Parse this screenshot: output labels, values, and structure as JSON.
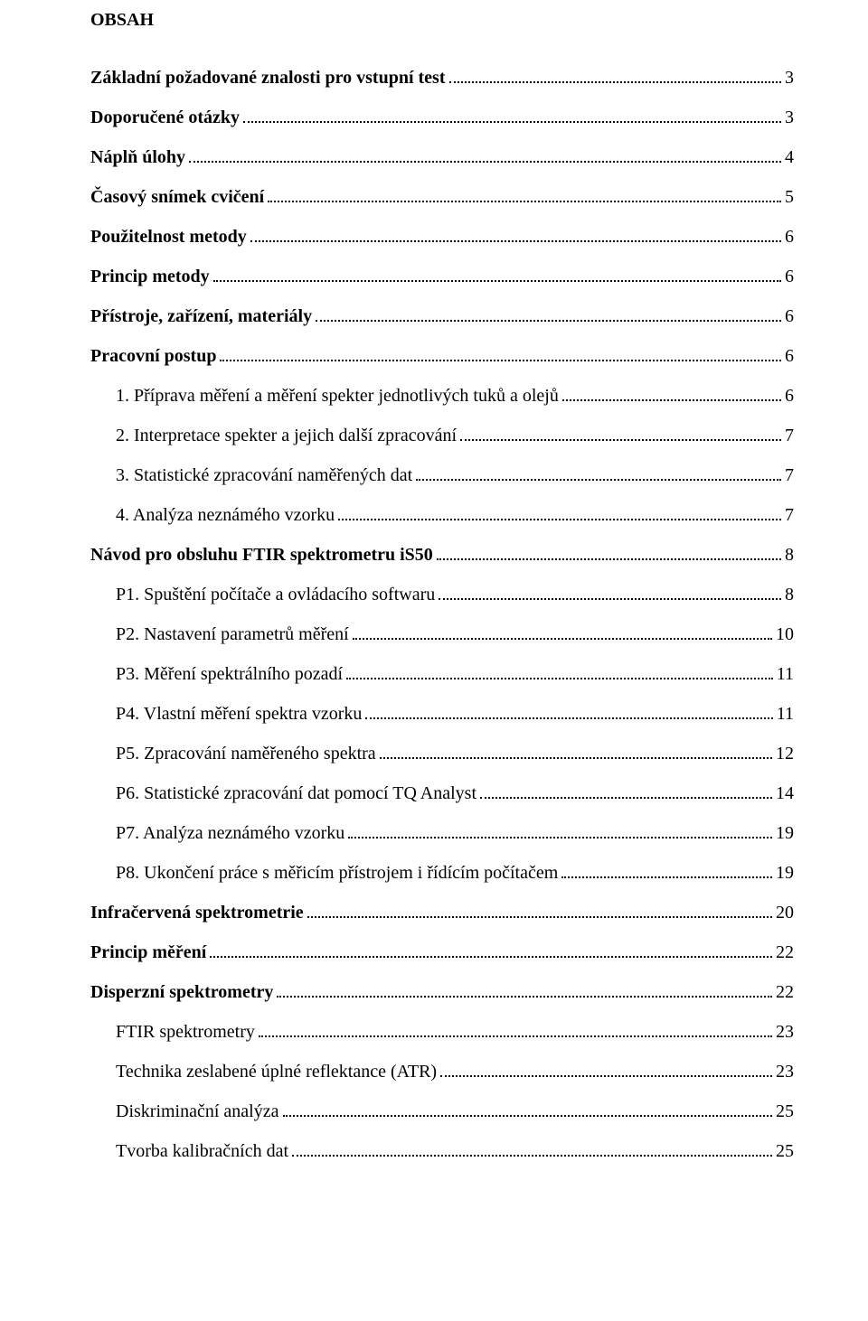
{
  "title": "OBSAH",
  "items": [
    {
      "label": "Základní požadované znalosti pro vstupní test",
      "page": "3",
      "bold": true,
      "indent": 0
    },
    {
      "label": "Doporučené otázky",
      "page": "3",
      "bold": true,
      "indent": 0
    },
    {
      "label": "Náplň úlohy",
      "page": "4",
      "bold": true,
      "indent": 0
    },
    {
      "label": "Časový snímek cvičení",
      "page": "5",
      "bold": true,
      "indent": 0
    },
    {
      "label": "Použitelnost metody",
      "page": "6",
      "bold": true,
      "indent": 0
    },
    {
      "label": "Princip metody",
      "page": "6",
      "bold": true,
      "indent": 0
    },
    {
      "label": "Přístroje, zařízení, materiály",
      "page": "6",
      "bold": true,
      "indent": 0
    },
    {
      "label": "Pracovní postup",
      "page": "6",
      "bold": true,
      "indent": 0
    },
    {
      "label": "1. Příprava měření a měření spekter jednotlivých tuků a olejů",
      "page": "6",
      "bold": false,
      "indent": 1
    },
    {
      "label": "2. Interpretace spekter a jejich další zpracování",
      "page": "7",
      "bold": false,
      "indent": 1
    },
    {
      "label": "3. Statistické zpracování naměřených dat",
      "page": "7",
      "bold": false,
      "indent": 1
    },
    {
      "label": "4. Analýza neznámého vzorku",
      "page": "7",
      "bold": false,
      "indent": 1
    },
    {
      "label": "Návod pro obsluhu FTIR spektrometru iS50",
      "page": "8",
      "bold": true,
      "indent": 0
    },
    {
      "label": "P1. Spuštění počítače a ovládacího softwaru",
      "page": "8",
      "bold": false,
      "indent": 1
    },
    {
      "label": "P2. Nastavení parametrů měření",
      "page": "10",
      "bold": false,
      "indent": 1
    },
    {
      "label": "P3. Měření spektrálního pozadí",
      "page": "11",
      "bold": false,
      "indent": 1
    },
    {
      "label": "P4. Vlastní měření spektra vzorku",
      "page": "11",
      "bold": false,
      "indent": 1
    },
    {
      "label": "P5. Zpracování naměřeného spektra",
      "page": "12",
      "bold": false,
      "indent": 1
    },
    {
      "label": "P6. Statistické zpracování dat pomocí TQ Analyst",
      "page": "14",
      "bold": false,
      "indent": 1
    },
    {
      "label": "P7. Analýza neznámého vzorku",
      "page": "19",
      "bold": false,
      "indent": 1
    },
    {
      "label": "P8. Ukončení práce s měřicím přístrojem i řídícím počítačem",
      "page": "19",
      "bold": false,
      "indent": 1
    },
    {
      "label": "Infračervená spektrometrie",
      "page": "20",
      "bold": true,
      "indent": 0
    },
    {
      "label": "Princip měření",
      "page": "22",
      "bold": true,
      "indent": 0
    },
    {
      "label": "Disperzní spektrometry",
      "page": "22",
      "bold": true,
      "indent": 0
    },
    {
      "label": "FTIR spektrometry",
      "page": "23",
      "bold": false,
      "indent": 1
    },
    {
      "label": "Technika zeslabené úplné reflektance (ATR)",
      "page": "23",
      "bold": false,
      "indent": 1
    },
    {
      "label": "Diskriminační analýza",
      "page": "25",
      "bold": false,
      "indent": 1
    },
    {
      "label": "Tvorba kalibračních dat",
      "page": "25",
      "bold": false,
      "indent": 1
    }
  ]
}
